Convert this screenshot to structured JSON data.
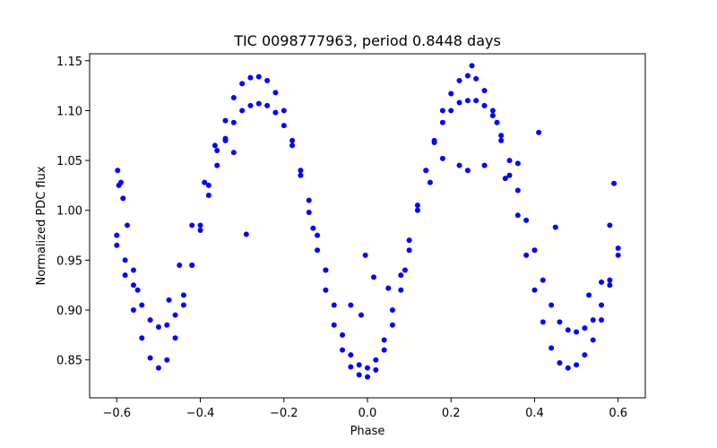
{
  "chart_data": {
    "type": "scatter",
    "title": "TIC 0098777963, period 0.8448 days",
    "xlabel": "Phase",
    "ylabel": "Normalized PDC flux",
    "xlim": [
      -0.665,
      0.665
    ],
    "ylim": [
      0.812,
      1.157
    ],
    "xticks": [
      -0.6,
      -0.4,
      -0.2,
      0.0,
      0.2,
      0.4,
      0.6
    ],
    "xtick_labels": [
      "−0.6",
      "−0.4",
      "−0.2",
      "0.0",
      "0.2",
      "0.4",
      "0.6"
    ],
    "yticks": [
      0.85,
      0.9,
      0.95,
      1.0,
      1.05,
      1.1,
      1.15
    ],
    "ytick_labels": [
      "0.85",
      "0.90",
      "0.95",
      "1.00",
      "1.05",
      "1.10",
      "1.15"
    ],
    "grid": false,
    "legend": "none",
    "marker_color": "#0000ff",
    "series": [
      {
        "x": [
          -0.6,
          -0.58,
          -0.56,
          -0.54,
          -0.52,
          -0.5,
          -0.48,
          -0.46,
          -0.44,
          -0.42,
          -0.4,
          -0.38,
          -0.36,
          -0.34,
          -0.32,
          -0.3,
          -0.28,
          -0.26,
          -0.24,
          -0.22,
          -0.2,
          -0.18,
          -0.16,
          -0.14,
          -0.12,
          -0.1,
          -0.08,
          -0.06,
          -0.04,
          -0.02,
          0.0,
          0.02,
          0.04,
          0.06,
          0.08,
          0.1,
          0.12,
          0.14,
          0.16,
          0.18,
          0.2,
          0.22,
          0.24,
          0.26,
          0.28,
          0.3,
          0.32,
          0.34,
          0.36,
          0.38,
          0.4,
          0.42,
          0.44,
          0.46,
          0.48,
          0.5,
          0.52,
          0.54,
          0.56,
          0.58,
          0.6
        ],
        "y": [
          0.965,
          0.935,
          0.9,
          0.872,
          0.852,
          0.842,
          0.85,
          0.872,
          0.905,
          0.945,
          0.985,
          1.025,
          1.06,
          1.09,
          1.113,
          1.127,
          1.133,
          1.134,
          1.13,
          1.118,
          1.1,
          1.07,
          1.035,
          0.998,
          0.96,
          0.92,
          0.885,
          0.86,
          0.843,
          0.835,
          0.833,
          0.84,
          0.86,
          0.885,
          0.92,
          0.96,
          1.0,
          1.04,
          1.07,
          1.1,
          1.117,
          1.13,
          1.135,
          1.132,
          1.12,
          1.1,
          1.07,
          1.035,
          0.995,
          0.955,
          0.92,
          0.888,
          0.862,
          0.847,
          0.842,
          0.845,
          0.855,
          0.87,
          0.89,
          0.925,
          0.962
        ]
      },
      {
        "x": [
          -0.6,
          -0.58,
          -0.56,
          -0.54,
          -0.52,
          -0.5,
          -0.48,
          -0.46,
          -0.44,
          -0.42,
          -0.4,
          -0.38,
          -0.36,
          -0.34,
          -0.32,
          -0.3,
          -0.28,
          -0.26,
          -0.24,
          -0.22,
          -0.2,
          -0.18,
          -0.16,
          -0.14,
          -0.12,
          -0.1,
          -0.08,
          -0.06,
          -0.04,
          -0.02,
          0.0,
          0.02,
          0.04,
          0.06,
          0.08,
          0.1,
          0.12,
          0.14,
          0.16,
          0.18,
          0.2,
          0.22,
          0.24,
          0.26,
          0.28,
          0.3,
          0.32,
          0.34,
          0.36,
          0.38,
          0.4,
          0.42,
          0.44,
          0.46,
          0.48,
          0.5,
          0.52,
          0.54,
          0.56,
          0.58,
          0.6
        ],
        "y": [
          0.975,
          0.95,
          0.925,
          0.905,
          0.89,
          0.883,
          0.885,
          0.895,
          0.915,
          0.945,
          0.98,
          1.015,
          1.045,
          1.07,
          1.088,
          1.1,
          1.105,
          1.107,
          1.105,
          1.098,
          1.085,
          1.065,
          1.04,
          1.01,
          0.975,
          0.94,
          0.905,
          0.875,
          0.855,
          0.845,
          0.842,
          0.85,
          0.87,
          0.9,
          0.935,
          0.97,
          1.005,
          1.04,
          1.068,
          1.088,
          1.1,
          1.108,
          1.11,
          1.11,
          1.105,
          1.095,
          1.075,
          1.05,
          1.02,
          0.99,
          0.96,
          0.93,
          0.905,
          0.888,
          0.88,
          0.878,
          0.882,
          0.89,
          0.905,
          0.93,
          0.955
        ]
      },
      {
        "x": [
          -0.598,
          -0.595,
          -0.59,
          -0.585,
          -0.575,
          -0.56,
          -0.55,
          -0.475,
          -0.45,
          -0.42,
          -0.39,
          -0.365,
          -0.34,
          -0.32,
          -0.29,
          -0.13,
          -0.1,
          -0.04,
          -0.015,
          -0.005,
          0.015,
          0.05,
          0.09,
          0.15,
          0.18,
          0.22,
          0.24,
          0.25,
          0.28,
          0.31,
          0.33,
          0.36,
          0.41,
          0.45,
          0.53,
          0.56,
          0.58,
          0.59
        ],
        "y": [
          1.04,
          1.025,
          1.028,
          1.012,
          0.985,
          0.94,
          0.92,
          0.91,
          0.945,
          0.985,
          1.028,
          1.065,
          1.072,
          1.058,
          0.976,
          0.982,
          0.94,
          0.905,
          0.895,
          0.955,
          0.933,
          0.922,
          0.94,
          1.028,
          1.052,
          1.045,
          1.04,
          1.145,
          1.045,
          1.088,
          1.032,
          1.047,
          1.078,
          0.983,
          0.915,
          0.928,
          0.985,
          1.027
        ]
      }
    ]
  }
}
